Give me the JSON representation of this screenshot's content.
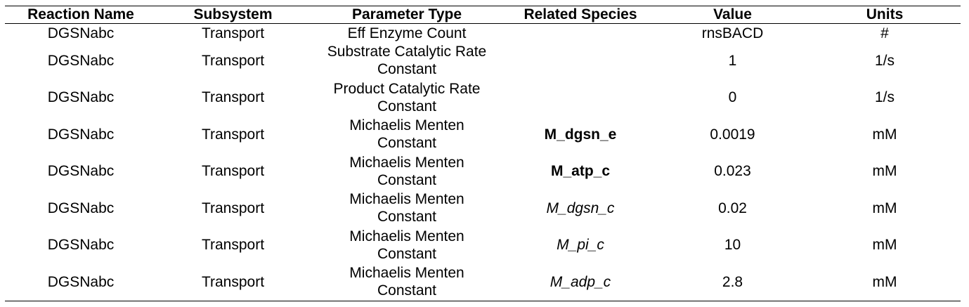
{
  "table": {
    "headers": [
      "Reaction Name",
      "Subsystem",
      "Parameter Type",
      "Related Species",
      "Value",
      "Units"
    ],
    "rows": [
      {
        "reaction": "DGSNabc",
        "subsystem": "Transport",
        "param_line1": "Eff Enzyme Count",
        "param_line2": "",
        "species": "",
        "species_style": "normal",
        "value": "rnsBACD",
        "units": "#"
      },
      {
        "reaction": "DGSNabc",
        "subsystem": "Transport",
        "param_line1": "Substrate Catalytic Rate",
        "param_line2": "Constant",
        "species": "",
        "species_style": "normal",
        "value": "1",
        "units": "1/s"
      },
      {
        "reaction": "DGSNabc",
        "subsystem": "Transport",
        "param_line1": "Product Catalytic Rate",
        "param_line2": "Constant",
        "species": "",
        "species_style": "normal",
        "value": "0",
        "units": "1/s"
      },
      {
        "reaction": "DGSNabc",
        "subsystem": "Transport",
        "param_line1": "Michaelis Menten",
        "param_line2": "Constant",
        "species": "M_dgsn_e",
        "species_style": "bold",
        "value": "0.0019",
        "units": "mM"
      },
      {
        "reaction": "DGSNabc",
        "subsystem": "Transport",
        "param_line1": "Michaelis Menten",
        "param_line2": "Constant",
        "species": "M_atp_c",
        "species_style": "bold",
        "value": "0.023",
        "units": "mM"
      },
      {
        "reaction": "DGSNabc",
        "subsystem": "Transport",
        "param_line1": "Michaelis Menten",
        "param_line2": "Constant",
        "species": "M_dgsn_c",
        "species_style": "italic",
        "value": "0.02",
        "units": "mM"
      },
      {
        "reaction": "DGSNabc",
        "subsystem": "Transport",
        "param_line1": "Michaelis Menten",
        "param_line2": "Constant",
        "species": "M_pi_c",
        "species_style": "italic",
        "value": "10",
        "units": "mM"
      },
      {
        "reaction": "DGSNabc",
        "subsystem": "Transport",
        "param_line1": "Michaelis Menten",
        "param_line2": "Constant",
        "species": "M_adp_c",
        "species_style": "italic",
        "value": "2.8",
        "units": "mM"
      }
    ]
  }
}
